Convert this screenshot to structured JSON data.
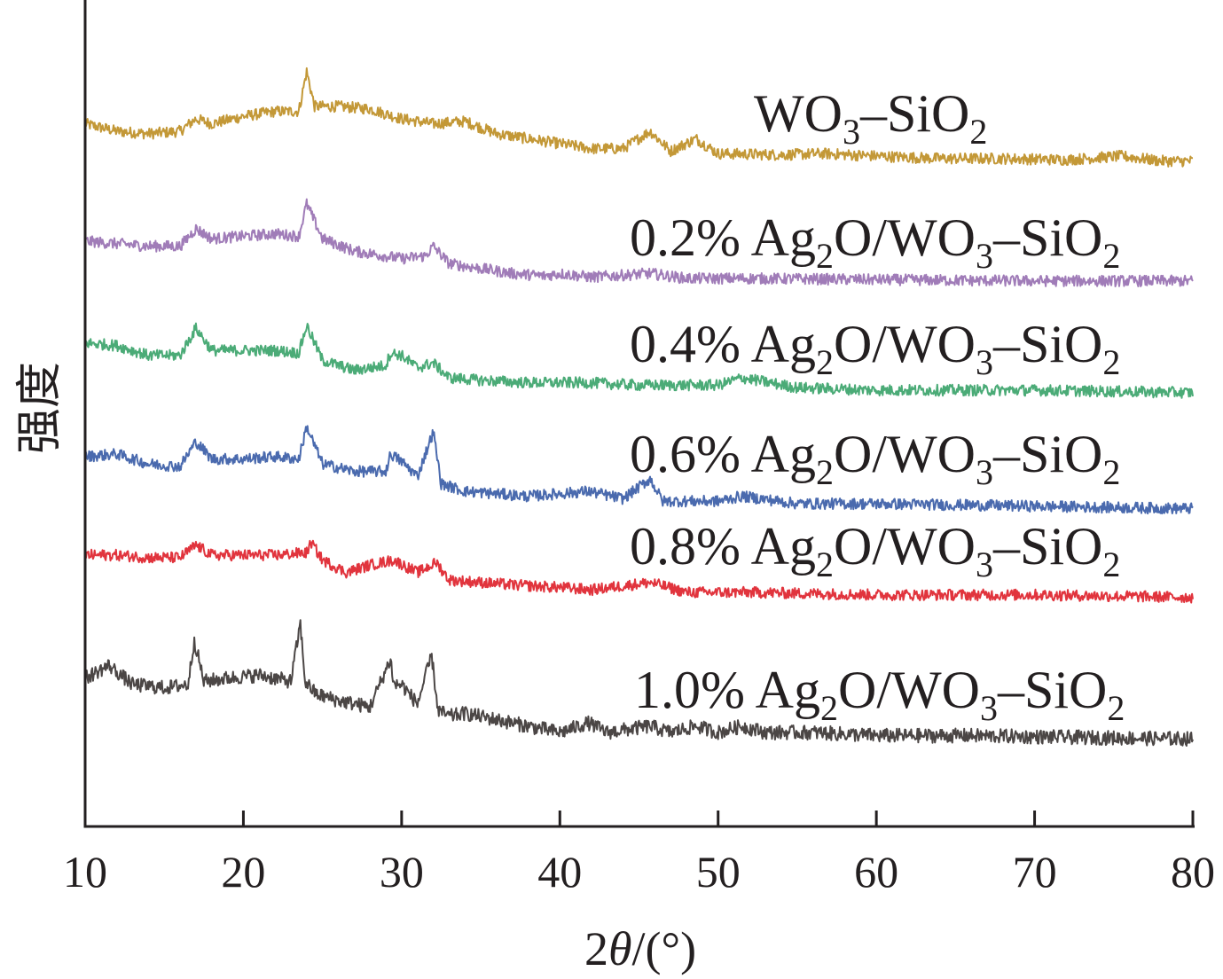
{
  "chart_data": {
    "type": "line",
    "xlabel_prefix": "2",
    "xlabel_theta": "θ",
    "xlabel_unit": "/(°)",
    "ylabel": "强度",
    "xlim": [
      10,
      80
    ],
    "xticks": [
      "10",
      "20",
      "30",
      "40",
      "50",
      "60",
      "70",
      "80"
    ],
    "y_ticks_shown": false,
    "legend_placement": "labels beside each trace, right side",
    "series": [
      {
        "key": "s0",
        "name_parts": [
          [
            "WO",
            ""
          ],
          [
            "3",
            "sub"
          ],
          [
            "–SiO",
            ""
          ],
          [
            "2",
            "sub"
          ]
        ],
        "color": "#c39837",
        "x": [
          10,
          12,
          14,
          16,
          17,
          18,
          20,
          22,
          23.5,
          24,
          24.5,
          26,
          28,
          30,
          32,
          34,
          36,
          38,
          40,
          42,
          44,
          45.7,
          47,
          48.6,
          50,
          54,
          56.6,
          60,
          64,
          68,
          72,
          75.5,
          78,
          80
        ],
        "y": [
          0.56,
          0.5,
          0.48,
          0.5,
          0.6,
          0.56,
          0.62,
          0.66,
          0.66,
          0.98,
          0.7,
          0.7,
          0.68,
          0.6,
          0.56,
          0.58,
          0.48,
          0.44,
          0.4,
          0.36,
          0.36,
          0.5,
          0.34,
          0.44,
          0.32,
          0.31,
          0.32,
          0.3,
          0.28,
          0.28,
          0.27,
          0.3,
          0.26,
          0.26
        ],
        "peaks": [
          17,
          24,
          34,
          41.8,
          45.7,
          48.6,
          56.6
        ]
      },
      {
        "key": "s1",
        "name_parts": [
          [
            "0.2% Ag",
            ""
          ],
          [
            "2",
            "sub"
          ],
          [
            "O/WO",
            ""
          ],
          [
            "3",
            "sub"
          ],
          [
            "–SiO",
            ""
          ],
          [
            "2",
            "sub"
          ]
        ],
        "color": "#a07cb8",
        "x": [
          10,
          12,
          14,
          16,
          17,
          18,
          20,
          22,
          23.5,
          24,
          25,
          27,
          30,
          31.5,
          32,
          33,
          35,
          37,
          39,
          40,
          42,
          45.7,
          48,
          52,
          60,
          70,
          80
        ],
        "y": [
          0.5,
          0.48,
          0.46,
          0.46,
          0.6,
          0.52,
          0.54,
          0.56,
          0.54,
          0.8,
          0.52,
          0.42,
          0.36,
          0.38,
          0.46,
          0.32,
          0.28,
          0.24,
          0.22,
          0.24,
          0.21,
          0.24,
          0.2,
          0.2,
          0.19,
          0.18,
          0.18
        ],
        "peaks": [
          17,
          24,
          32,
          39,
          45.7
        ]
      },
      {
        "key": "s2",
        "name_parts": [
          [
            "0.4% Ag",
            ""
          ],
          [
            "2",
            "sub"
          ],
          [
            "O/WO",
            ""
          ],
          [
            "3",
            "sub"
          ],
          [
            "–SiO",
            ""
          ],
          [
            "2",
            "sub"
          ]
        ],
        "color": "#4bab77",
        "x": [
          10,
          12,
          14,
          16,
          17,
          18,
          20,
          22,
          23.5,
          24,
          25,
          27,
          29,
          29.3,
          30,
          31,
          32,
          33,
          35,
          38,
          41.8,
          45,
          50,
          51.5,
          55,
          60,
          70,
          80
        ],
        "y": [
          0.58,
          0.56,
          0.48,
          0.48,
          0.7,
          0.52,
          0.52,
          0.52,
          0.5,
          0.72,
          0.44,
          0.36,
          0.4,
          0.5,
          0.48,
          0.38,
          0.42,
          0.3,
          0.28,
          0.26,
          0.26,
          0.24,
          0.24,
          0.3,
          0.22,
          0.2,
          0.2,
          0.18
        ],
        "peaks": [
          17,
          24,
          29.3,
          32,
          41.8,
          51.5
        ]
      },
      {
        "key": "s3",
        "name_parts": [
          [
            "0.6% Ag",
            ""
          ],
          [
            "2",
            "sub"
          ],
          [
            "O/WO",
            ""
          ],
          [
            "3",
            "sub"
          ],
          [
            "–SiO",
            ""
          ],
          [
            "2",
            "sub"
          ]
        ],
        "color": "#4a6aae",
        "x": [
          10,
          12,
          14,
          16,
          17,
          18,
          20,
          22,
          23.5,
          24,
          25,
          27,
          29,
          29.3,
          30,
          31,
          32,
          32.5,
          34,
          36,
          38,
          41.8,
          44,
          45.7,
          46.5,
          50,
          51.5,
          55,
          60,
          70,
          80
        ],
        "y": [
          0.58,
          0.6,
          0.52,
          0.5,
          0.7,
          0.56,
          0.56,
          0.58,
          0.56,
          0.82,
          0.52,
          0.46,
          0.46,
          0.6,
          0.54,
          0.42,
          0.78,
          0.36,
          0.3,
          0.28,
          0.26,
          0.3,
          0.24,
          0.4,
          0.22,
          0.22,
          0.26,
          0.2,
          0.2,
          0.18,
          0.16
        ],
        "peaks": [
          17,
          24,
          29.3,
          32,
          41.8,
          45.7,
          51.5
        ]
      },
      {
        "key": "s4",
        "name_parts": [
          [
            "0.8% Ag",
            ""
          ],
          [
            "2",
            "sub"
          ],
          [
            "O/WO",
            ""
          ],
          [
            "3",
            "sub"
          ],
          [
            "–SiO",
            ""
          ],
          [
            "2",
            "sub"
          ]
        ],
        "color": "#e1343d",
        "x": [
          10,
          12,
          14,
          16,
          17,
          18,
          20,
          22,
          24,
          24.3,
          25,
          26.5,
          28,
          29.5,
          31,
          32.2,
          33,
          35,
          37,
          40,
          42,
          45.7,
          48,
          52,
          60,
          70,
          80
        ],
        "y": [
          0.5,
          0.5,
          0.48,
          0.48,
          0.58,
          0.5,
          0.5,
          0.5,
          0.52,
          0.6,
          0.46,
          0.36,
          0.42,
          0.46,
          0.36,
          0.44,
          0.3,
          0.28,
          0.26,
          0.24,
          0.22,
          0.28,
          0.2,
          0.2,
          0.18,
          0.18,
          0.16
        ],
        "peaks": [
          17,
          24.3,
          32.2,
          45.7
        ]
      },
      {
        "key": "s5",
        "name_parts": [
          [
            "1.0% Ag",
            ""
          ],
          [
            "2",
            "sub"
          ],
          [
            "O/WO",
            ""
          ],
          [
            "3",
            "sub"
          ],
          [
            "–SiO",
            ""
          ],
          [
            "2",
            "sub"
          ]
        ],
        "color": "#4b4645",
        "x": [
          10,
          11.5,
          13,
          15,
          16.5,
          16.9,
          17.5,
          19,
          21,
          23,
          23.6,
          23.9,
          24.6,
          26,
          28,
          29.3,
          29.5,
          30,
          31,
          31.9,
          32.3,
          33,
          34,
          36,
          38,
          40,
          41.8,
          43,
          45.7,
          47,
          48.6,
          50,
          51.5,
          53,
          56,
          60,
          66,
          72,
          80
        ],
        "y": [
          0.64,
          0.72,
          0.6,
          0.58,
          0.6,
          0.88,
          0.62,
          0.64,
          0.66,
          0.62,
          0.98,
          0.62,
          0.54,
          0.5,
          0.46,
          0.76,
          0.6,
          0.6,
          0.48,
          0.78,
          0.44,
          0.4,
          0.42,
          0.38,
          0.34,
          0.3,
          0.36,
          0.3,
          0.34,
          0.3,
          0.34,
          0.3,
          0.34,
          0.3,
          0.3,
          0.28,
          0.28,
          0.27,
          0.26
        ],
        "peaks": [
          16.9,
          23.9,
          29.3,
          31.9,
          34,
          41.8,
          45.7,
          48.6,
          51.5
        ]
      }
    ]
  }
}
